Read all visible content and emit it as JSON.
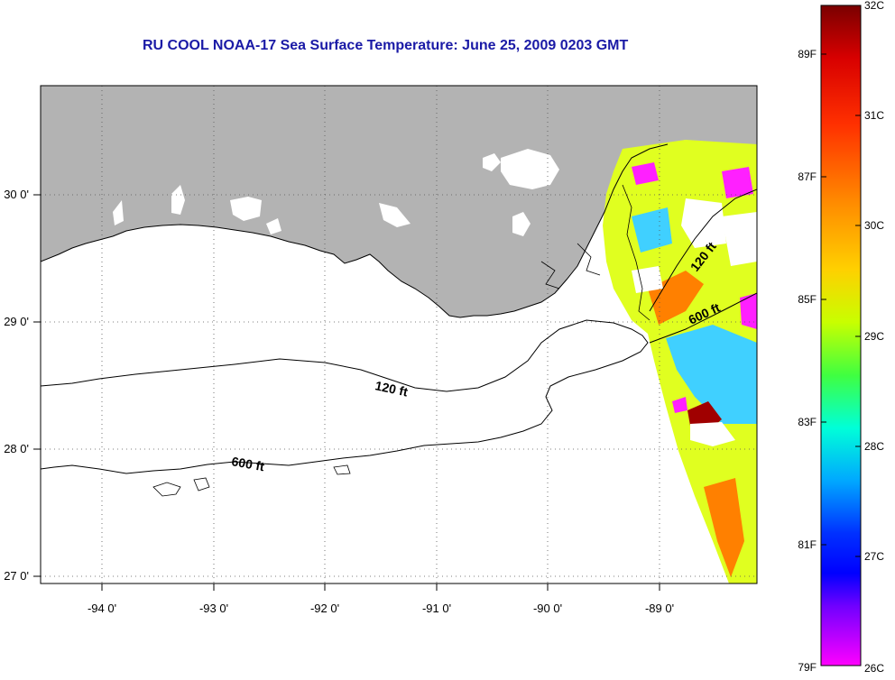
{
  "title": "RU COOL  NOAA-17  Sea Surface Temperature:  June 25, 2009 0203 GMT",
  "map": {
    "lon_ticks": [
      "-94 0'",
      "-93 0'",
      "-92 0'",
      "-91 0'",
      "-90 0'",
      "-89 0'"
    ],
    "lat_ticks": [
      "30 0'",
      "29 0'",
      "28 0'",
      "27 0'"
    ],
    "contours": [
      {
        "label": "120 ft"
      },
      {
        "label": "600 ft"
      },
      {
        "label": "120 ft"
      },
      {
        "label": "600 ft"
      }
    ]
  },
  "colorbar": {
    "gradient_colors": [
      "#7a0000",
      "#d80000",
      "#ff3000",
      "#ff8c00",
      "#ffd000",
      "#c8ff00",
      "#40ff40",
      "#00ffd8",
      "#00a8ff",
      "#0030ff",
      "#0000ff",
      "#7000ff",
      "#ff00ff"
    ],
    "fahrenheit_labels": [
      "89F",
      "87F",
      "85F",
      "83F",
      "81F",
      "79F"
    ],
    "celsius_labels": [
      "32C",
      "31C",
      "30C",
      "29C",
      "28C",
      "27C",
      "26C"
    ]
  },
  "colors": {
    "land": "#b3b3b3",
    "title": "#1a1aa6",
    "sst_hot": "#a00000",
    "sst_warm": "#ff8000",
    "sst_mid": "#e0ff20",
    "sst_cool": "#40d0ff",
    "sst_cold": "#ff20ff"
  }
}
